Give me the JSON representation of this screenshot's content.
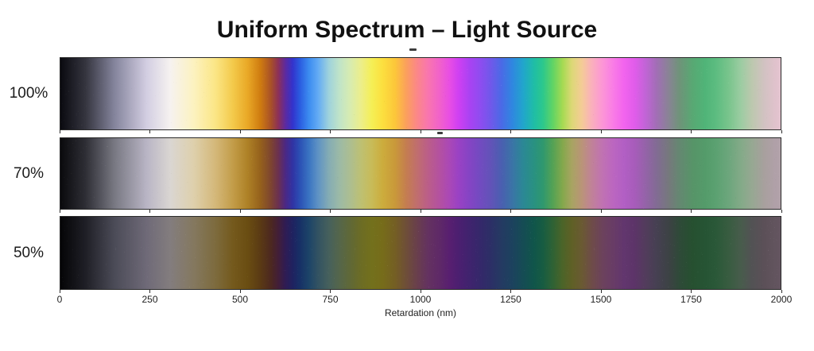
{
  "chart_data": {
    "type": "heatmap",
    "title": "Uniform Spectrum – Light Source",
    "xlabel": "Retardation (nm)",
    "ylabel": "",
    "x_range": [
      0,
      2000
    ],
    "grid": false,
    "legend": "none",
    "x_ticks_nm": [
      0,
      250,
      500,
      750,
      1000,
      1250,
      1500,
      1750,
      2000
    ],
    "x_tick_labels": [
      "0",
      "250",
      "500",
      "750",
      "1000",
      "1250",
      "1500",
      "1750",
      "2000"
    ],
    "colors": {
      "background": "#ffffff",
      "title_text": "#111111",
      "axis_text": "#1f1f1f",
      "bar_border": "#2b2b2b",
      "tick_mark": "#2b2b2b"
    },
    "rows": [
      {
        "label": "100%",
        "stops": [
          [
            0,
            "#0a0a10"
          ],
          [
            70,
            "#35353f"
          ],
          [
            150,
            "#84849c"
          ],
          [
            240,
            "#d3cee2"
          ],
          [
            305,
            "#f6f2f0"
          ],
          [
            370,
            "#fcf2c0"
          ],
          [
            430,
            "#fbe686"
          ],
          [
            480,
            "#f3c94a"
          ],
          [
            520,
            "#e9a826"
          ],
          [
            555,
            "#cf7c10"
          ],
          [
            585,
            "#a85028"
          ],
          [
            605,
            "#8c3058"
          ],
          [
            625,
            "#5c2aa0"
          ],
          [
            645,
            "#3333cc"
          ],
          [
            665,
            "#2a5ce0"
          ],
          [
            690,
            "#3c8cf0"
          ],
          [
            715,
            "#62aaf4"
          ],
          [
            745,
            "#9ed2dc"
          ],
          [
            775,
            "#c0e4c8"
          ],
          [
            805,
            "#d8ecb0"
          ],
          [
            835,
            "#ecee8a"
          ],
          [
            865,
            "#f5ef55"
          ],
          [
            895,
            "#fcdf3e"
          ],
          [
            930,
            "#fcc63a"
          ],
          [
            960,
            "#fba05c"
          ],
          [
            990,
            "#fb8788"
          ],
          [
            1020,
            "#f976ae"
          ],
          [
            1055,
            "#f060cc"
          ],
          [
            1080,
            "#e84ee4"
          ],
          [
            1105,
            "#d040f2"
          ],
          [
            1135,
            "#ab42f2"
          ],
          [
            1165,
            "#8f4cf0"
          ],
          [
            1195,
            "#7058ea"
          ],
          [
            1225,
            "#4a6ae6"
          ],
          [
            1255,
            "#2f87e0"
          ],
          [
            1285,
            "#21a5cc"
          ],
          [
            1315,
            "#1fbda6"
          ],
          [
            1340,
            "#2cc88c"
          ],
          [
            1368,
            "#62d464"
          ],
          [
            1395,
            "#a6da52"
          ],
          [
            1420,
            "#dcd876"
          ],
          [
            1448,
            "#f4cc96"
          ],
          [
            1475,
            "#fab0bc"
          ],
          [
            1505,
            "#fc96d6"
          ],
          [
            1535,
            "#f97ce6"
          ],
          [
            1565,
            "#f264ee"
          ],
          [
            1595,
            "#e05cea"
          ],
          [
            1625,
            "#c164d6"
          ],
          [
            1655,
            "#a26eb6"
          ],
          [
            1690,
            "#888494"
          ],
          [
            1720,
            "#6e9479"
          ],
          [
            1755,
            "#58a873"
          ],
          [
            1790,
            "#50b478"
          ],
          [
            1820,
            "#5cbc80"
          ],
          [
            1855,
            "#78c48c"
          ],
          [
            1890,
            "#9ccca2"
          ],
          [
            1920,
            "#bcc8ae"
          ],
          [
            1955,
            "#d2c2c2"
          ],
          [
            1985,
            "#e0c2cc"
          ],
          [
            2000,
            "#e4c4d0"
          ]
        ]
      },
      {
        "label": "70%",
        "stops": [
          [
            0,
            "#0a0a0d"
          ],
          [
            70,
            "#2e2e35"
          ],
          [
            150,
            "#787882"
          ],
          [
            240,
            "#b9b5c5"
          ],
          [
            305,
            "#dad6d2"
          ],
          [
            370,
            "#ded0ac"
          ],
          [
            430,
            "#d4b87a"
          ],
          [
            480,
            "#c29c48"
          ],
          [
            520,
            "#ae8126"
          ],
          [
            555,
            "#95611c"
          ],
          [
            585,
            "#7d4430"
          ],
          [
            605,
            "#6b3050"
          ],
          [
            625,
            "#4b2884"
          ],
          [
            645,
            "#3033a4"
          ],
          [
            665,
            "#2b50b4"
          ],
          [
            690,
            "#3a74c2"
          ],
          [
            715,
            "#5e92c4"
          ],
          [
            745,
            "#84acb4"
          ],
          [
            775,
            "#9cbaa6"
          ],
          [
            805,
            "#adbe90"
          ],
          [
            835,
            "#bec072"
          ],
          [
            865,
            "#c8bb58"
          ],
          [
            895,
            "#ccac3c"
          ],
          [
            930,
            "#c9983a"
          ],
          [
            960,
            "#c47d50"
          ],
          [
            990,
            "#c06e6e"
          ],
          [
            1020,
            "#bb5e88"
          ],
          [
            1055,
            "#b350a2"
          ],
          [
            1080,
            "#aa48b6"
          ],
          [
            1105,
            "#9a42c4"
          ],
          [
            1135,
            "#8544c4"
          ],
          [
            1165,
            "#724bc0"
          ],
          [
            1195,
            "#6253b8"
          ],
          [
            1225,
            "#4a5fb0"
          ],
          [
            1255,
            "#3a74a6"
          ],
          [
            1285,
            "#2b8895"
          ],
          [
            1315,
            "#299181"
          ],
          [
            1340,
            "#2f986e"
          ],
          [
            1368,
            "#55a254"
          ],
          [
            1395,
            "#84a84c"
          ],
          [
            1420,
            "#a8a462"
          ],
          [
            1448,
            "#ba9478"
          ],
          [
            1475,
            "#c08298"
          ],
          [
            1505,
            "#c072b2"
          ],
          [
            1535,
            "#bb66c0"
          ],
          [
            1565,
            "#b25fc4"
          ],
          [
            1595,
            "#a75cba"
          ],
          [
            1625,
            "#9463a8"
          ],
          [
            1655,
            "#826b94"
          ],
          [
            1690,
            "#75797c"
          ],
          [
            1720,
            "#648871"
          ],
          [
            1755,
            "#579468"
          ],
          [
            1790,
            "#549b6a"
          ],
          [
            1820,
            "#5ba171"
          ],
          [
            1855,
            "#6ca67c"
          ],
          [
            1890,
            "#83aa88"
          ],
          [
            1920,
            "#96a892"
          ],
          [
            1955,
            "#a8a09e"
          ],
          [
            1985,
            "#b0a0a8"
          ],
          [
            2000,
            "#b2a2aa"
          ]
        ]
      },
      {
        "label": "50%",
        "stops": [
          [
            0,
            "#050507"
          ],
          [
            70,
            "#1f1f26"
          ],
          [
            150,
            "#4b4b57"
          ],
          [
            240,
            "#6f6a78"
          ],
          [
            305,
            "#837d7e"
          ],
          [
            370,
            "#84785f"
          ],
          [
            430,
            "#7d6b3e"
          ],
          [
            480,
            "#74591c"
          ],
          [
            520,
            "#6a4d12"
          ],
          [
            555,
            "#5a3a14"
          ],
          [
            585,
            "#4c2820"
          ],
          [
            605,
            "#421e38"
          ],
          [
            625,
            "#2f1c54"
          ],
          [
            645,
            "#1f2260"
          ],
          [
            665,
            "#173066"
          ],
          [
            690,
            "#1c4468"
          ],
          [
            715,
            "#325262"
          ],
          [
            745,
            "#46605c"
          ],
          [
            775,
            "#55664a"
          ],
          [
            805,
            "#606836"
          ],
          [
            835,
            "#6c6c24"
          ],
          [
            865,
            "#73701c"
          ],
          [
            895,
            "#766c1a"
          ],
          [
            930,
            "#745e24"
          ],
          [
            960,
            "#6e4e38"
          ],
          [
            990,
            "#693f4c"
          ],
          [
            1020,
            "#643260"
          ],
          [
            1055,
            "#5e2868"
          ],
          [
            1080,
            "#581f70"
          ],
          [
            1105,
            "#4c1f70"
          ],
          [
            1135,
            "#40236e"
          ],
          [
            1165,
            "#35286a"
          ],
          [
            1195,
            "#2c2f66"
          ],
          [
            1225,
            "#243a62"
          ],
          [
            1255,
            "#1c425e"
          ],
          [
            1285,
            "#154c54"
          ],
          [
            1315,
            "#10554a"
          ],
          [
            1340,
            "#175c42"
          ],
          [
            1368,
            "#2f6234"
          ],
          [
            1395,
            "#4c6428"
          ],
          [
            1420,
            "#5f6026"
          ],
          [
            1448,
            "#6a5a32"
          ],
          [
            1475,
            "#6e4c48"
          ],
          [
            1505,
            "#6c425c"
          ],
          [
            1535,
            "#683c66"
          ],
          [
            1565,
            "#62366e"
          ],
          [
            1595,
            "#5c3468"
          ],
          [
            1625,
            "#523c5c"
          ],
          [
            1655,
            "#464052"
          ],
          [
            1690,
            "#3c4244"
          ],
          [
            1720,
            "#2e4a38"
          ],
          [
            1755,
            "#265030"
          ],
          [
            1790,
            "#265434"
          ],
          [
            1820,
            "#2a5838"
          ],
          [
            1855,
            "#385c40"
          ],
          [
            1890,
            "#485c4c"
          ],
          [
            1920,
            "#525254"
          ],
          [
            1955,
            "#5c5058"
          ],
          [
            1985,
            "#62545e"
          ],
          [
            2000,
            "#645560"
          ]
        ]
      }
    ]
  }
}
